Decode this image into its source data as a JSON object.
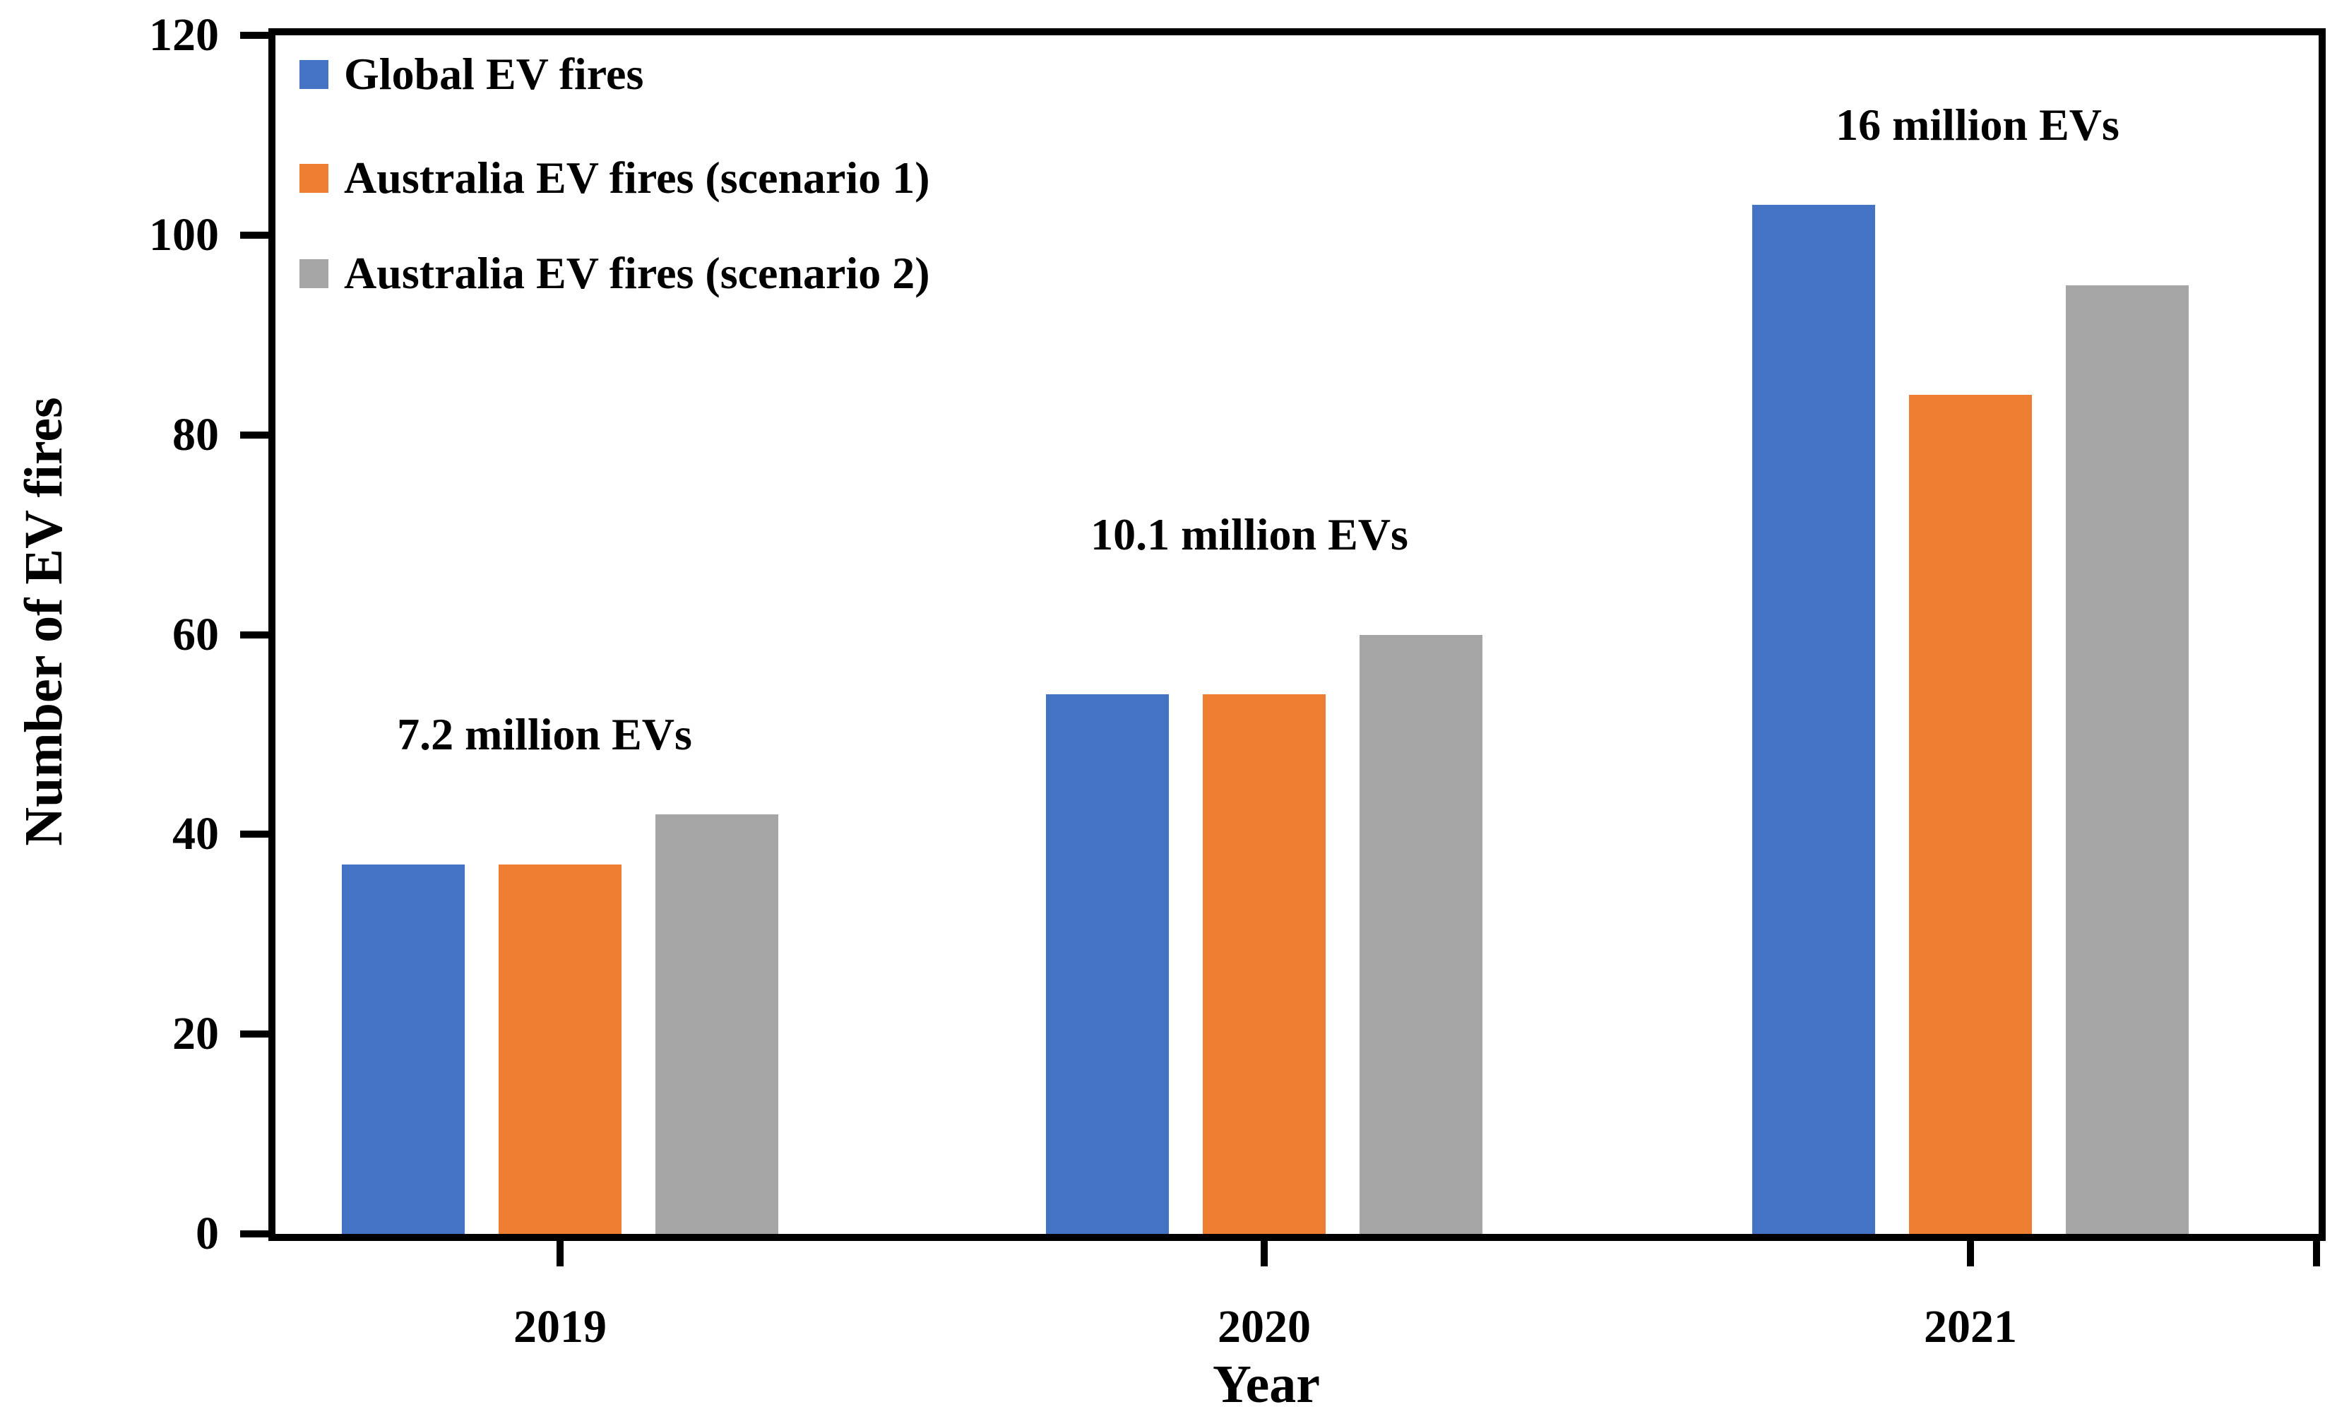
{
  "chart_data": {
    "type": "bar",
    "title": "",
    "xlabel": "Year",
    "ylabel": "Number of EV fires",
    "categories": [
      "2019",
      "2020",
      "2021"
    ],
    "series": [
      {
        "name": "Global EV fires",
        "color": "#4472C4",
        "values": [
          37,
          54,
          103
        ]
      },
      {
        "name": "Australia EV fires (scenario 1)",
        "color": "#ED7D31",
        "values": [
          37,
          54,
          84
        ]
      },
      {
        "name": "Australia EV fires (scenario 2)",
        "color": "#A5A5A5",
        "values": [
          42,
          60,
          95
        ]
      }
    ],
    "annotations": [
      {
        "text": "7.2 million EVs",
        "category": "2019",
        "y_value": 50
      },
      {
        "text": "10.1 million EVs",
        "category": "2020",
        "y_value": 70
      },
      {
        "text": "16 million EVs",
        "category": "2021",
        "y_value": 111
      }
    ],
    "ylim": [
      0,
      120
    ],
    "ytick_step": 20,
    "yticks": [
      0,
      20,
      40,
      60,
      80,
      100,
      120
    ],
    "grid": false,
    "legend_position": "top-left",
    "axis_color": "#000000",
    "plot_background": "#ffffff"
  }
}
